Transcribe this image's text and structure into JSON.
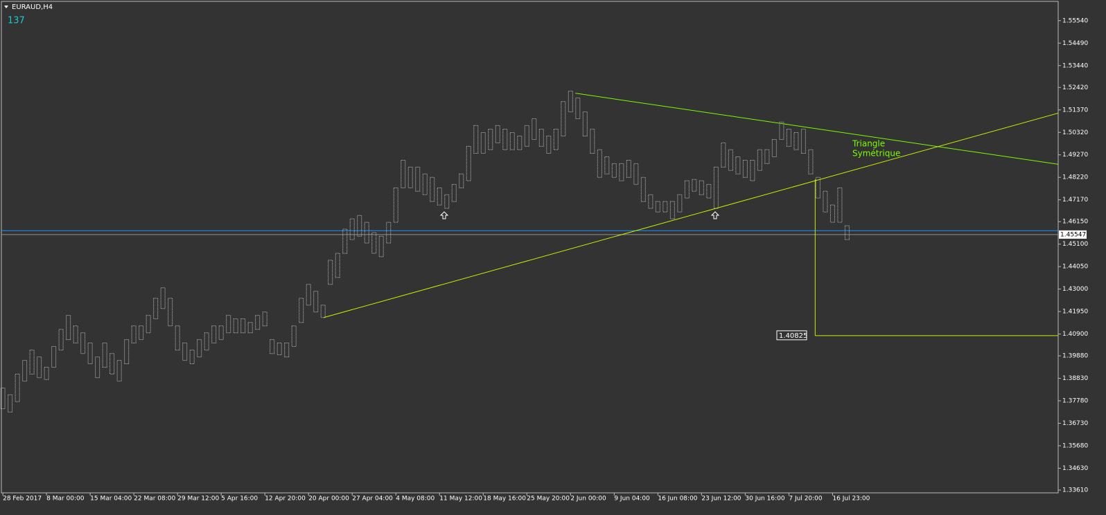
{
  "chart_data": {
    "type": "ohlc",
    "title": "EURAUD,H4",
    "counter": "137",
    "annotation": {
      "lines": [
        "Triangle",
        "Symétrique"
      ],
      "color": "#7cfc00"
    },
    "bar_color": "#c0c0c0",
    "xlim": [
      -0.2,
      145.0
    ],
    "xticks": [
      {
        "value": 0,
        "label": "28 Feb 2017"
      },
      {
        "value": 6,
        "label": "8 Mar 00:00"
      },
      {
        "value": 12,
        "label": "15 Mar 04:00"
      },
      {
        "value": 18,
        "label": "22 Mar 08:00"
      },
      {
        "value": 24,
        "label": "29 Mar 12:00"
      },
      {
        "value": 30,
        "label": "5 Apr 16:00"
      },
      {
        "value": 36,
        "label": "12 Apr 20:00"
      },
      {
        "value": 42,
        "label": "20 Apr 00:00"
      },
      {
        "value": 48,
        "label": "27 Apr 04:00"
      },
      {
        "value": 54,
        "label": "4 May 08:00"
      },
      {
        "value": 60,
        "label": "11 May 12:00"
      },
      {
        "value": 66,
        "label": "18 May 16:00"
      },
      {
        "value": 72,
        "label": "25 May 20:00"
      },
      {
        "value": 78,
        "label": "2 Jun 00:00"
      },
      {
        "value": 84,
        "label": "9 Jun 04:00"
      },
      {
        "value": 90,
        "label": "16 Jun 08:00"
      },
      {
        "value": 96,
        "label": "23 Jun 12:00"
      },
      {
        "value": 102,
        "label": "30 Jun 16:00"
      },
      {
        "value": 108,
        "label": "7 Jul 20:00"
      },
      {
        "value": 114,
        "label": "16 Jul 23:00"
      }
    ],
    "ylim": [
      1.3348,
      1.5644
    ],
    "yticks": [
      {
        "value": 1.5554,
        "label": "1.55540"
      },
      {
        "value": 1.5449,
        "label": "1.54490"
      },
      {
        "value": 1.5344,
        "label": "1.53440"
      },
      {
        "value": 1.5242,
        "label": "1.52420"
      },
      {
        "value": 1.5137,
        "label": "1.51370"
      },
      {
        "value": 1.5032,
        "label": "1.50320"
      },
      {
        "value": 1.4927,
        "label": "1.49270"
      },
      {
        "value": 1.4822,
        "label": "1.48220"
      },
      {
        "value": 1.4717,
        "label": "1.47170"
      },
      {
        "value": 1.4615,
        "label": "1.46150"
      },
      {
        "value": 1.451,
        "label": "1.45100"
      },
      {
        "value": 1.4405,
        "label": "1.44050"
      },
      {
        "value": 1.43,
        "label": "1.43000"
      },
      {
        "value": 1.4195,
        "label": "1.41950"
      },
      {
        "value": 1.409,
        "label": "1.40900"
      },
      {
        "value": 1.3988,
        "label": "1.39880"
      },
      {
        "value": 1.3883,
        "label": "1.38830"
      },
      {
        "value": 1.3778,
        "label": "1.37780"
      },
      {
        "value": 1.3673,
        "label": "1.36730"
      },
      {
        "value": 1.3568,
        "label": "1.35680"
      },
      {
        "value": 1.3463,
        "label": "1.34630"
      },
      {
        "value": 1.3361,
        "label": "1.33610"
      }
    ],
    "high": [
      1.3838,
      1.3806,
      1.3903,
      1.3967,
      1.4015,
      1.3983,
      1.3935,
      1.4032,
      1.4112,
      1.4177,
      1.4128,
      1.4096,
      1.4048,
      1.3983,
      1.4048,
      1.3999,
      1.3967,
      1.4064,
      1.4128,
      1.4128,
      1.4177,
      1.4257,
      1.4306,
      1.4257,
      1.4128,
      1.4048,
      1.4015,
      1.4064,
      1.4096,
      1.4128,
      1.4128,
      1.4177,
      1.4161,
      1.4161,
      1.4144,
      1.4177,
      1.4193,
      1.4064,
      1.4048,
      1.4048,
      1.4128,
      1.4257,
      1.4322,
      1.429,
      1.4225,
      1.4435,
      1.4467,
      1.458,
      1.4628,
      1.4644,
      1.4612,
      1.4564,
      1.4547,
      1.4612,
      1.4773,
      1.4902,
      1.487,
      1.487,
      1.4838,
      1.4822,
      1.4773,
      1.4741,
      1.4789,
      1.4838,
      1.4967,
      1.5064,
      1.5031,
      1.5047,
      1.5064,
      1.5047,
      1.5031,
      1.5015,
      1.5064,
      1.5096,
      1.5047,
      1.5015,
      1.5047,
      1.5176,
      1.5225,
      1.5193,
      1.5128,
      1.5047,
      1.4951,
      1.4918,
      1.4886,
      1.4886,
      1.4902,
      1.4886,
      1.4822,
      1.4741,
      1.4709,
      1.4709,
      1.4709,
      1.4741,
      1.4806,
      1.4812,
      1.4806,
      1.4789,
      1.487,
      1.4983,
      1.4951,
      1.4918,
      1.4902,
      1.4902,
      1.4951,
      1.4951,
      1.4999,
      1.508,
      1.5047,
      1.5031,
      1.5047,
      1.4951,
      1.4822,
      1.4757,
      1.4693,
      1.4773,
      1.4596
    ],
    "low": [
      1.3741,
      1.3725,
      1.3774,
      1.387,
      1.3903,
      1.3886,
      1.3877,
      1.3935,
      1.4015,
      1.4064,
      1.4048,
      1.3999,
      1.3951,
      1.3886,
      1.3935,
      1.3903,
      1.387,
      1.3951,
      1.4048,
      1.4064,
      1.4096,
      1.4161,
      1.4209,
      1.4128,
      1.4015,
      1.3967,
      1.3951,
      1.3983,
      1.4015,
      1.4048,
      1.4064,
      1.4096,
      1.4096,
      1.4096,
      1.4096,
      1.4112,
      1.4128,
      1.3999,
      1.3993,
      1.3983,
      1.4032,
      1.4144,
      1.4225,
      1.4193,
      1.4167,
      1.4322,
      1.4354,
      1.4467,
      1.4531,
      1.4547,
      1.4515,
      1.4467,
      1.4451,
      1.4515,
      1.4612,
      1.4773,
      1.4773,
      1.4757,
      1.4741,
      1.4709,
      1.4693,
      1.4677,
      1.4709,
      1.4773,
      1.4806,
      1.4934,
      1.4934,
      1.4951,
      1.4983,
      1.4951,
      1.4951,
      1.4951,
      1.4967,
      1.4999,
      1.4967,
      1.4934,
      1.4951,
      1.5015,
      1.5128,
      1.5096,
      1.5015,
      1.4934,
      1.4822,
      1.4838,
      1.4822,
      1.4806,
      1.4822,
      1.4789,
      1.4709,
      1.4677,
      1.466,
      1.466,
      1.4628,
      1.466,
      1.4725,
      1.4757,
      1.4741,
      1.4725,
      1.4677,
      1.487,
      1.4854,
      1.4838,
      1.4822,
      1.4806,
      1.4854,
      1.4886,
      1.4918,
      1.4999,
      1.4967,
      1.4951,
      1.4934,
      1.4838,
      1.4725,
      1.466,
      1.4612,
      1.4612,
      1.4531
    ],
    "trendlines": [
      {
        "x": [
          78.66,
          145.0
        ],
        "y": [
          1.5215,
          1.4883
        ],
        "color": "#7cfc00"
      },
      {
        "x": [
          44.09,
          145.0
        ],
        "y": [
          1.4167,
          1.5122
        ],
        "color": "#c8f000"
      },
      {
        "x": [
          111.61,
          111.61
        ],
        "y": [
          1.4812,
          1.40825
        ],
        "color": "#c8f000"
      },
      {
        "x": [
          111.61,
          145.0
        ],
        "y": [
          1.40825,
          1.40825
        ],
        "color": "#c8f000"
      }
    ],
    "hlines": [
      {
        "value": 1.4573,
        "color": "#1e90ff"
      },
      {
        "value": 1.45547,
        "label": "1.45547",
        "color": "#909090"
      }
    ],
    "target": {
      "value": 1.40825,
      "label": "1.40825"
    }
  }
}
